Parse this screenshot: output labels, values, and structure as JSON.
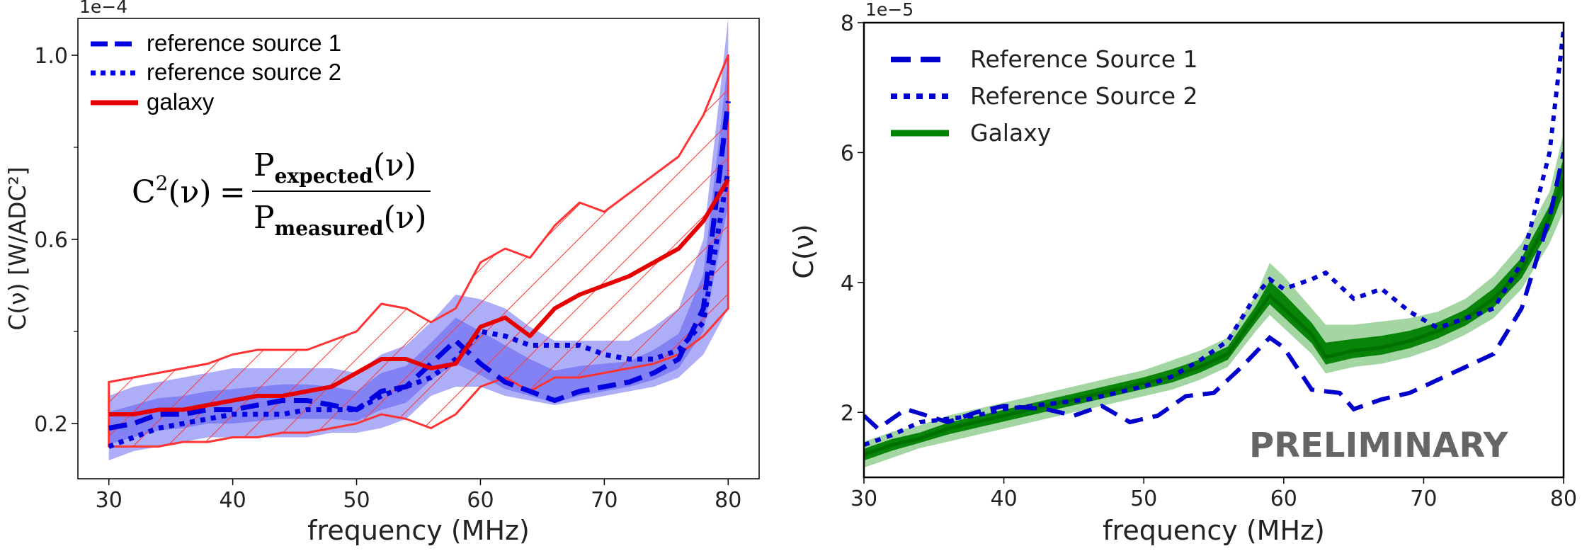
{
  "chart_data": [
    {
      "type": "line",
      "title": "",
      "xlabel": "frequency (MHz)",
      "ylabel": "C(ν) [W/ADC²]",
      "offset_text": "1e−4",
      "xlim": [
        27.5,
        82.5
      ],
      "ylim": [
        0.08,
        1.08
      ],
      "x_ticks": [
        30,
        40,
        50,
        60,
        70,
        80
      ],
      "x_tick_labels": [
        "30",
        "40",
        "50",
        "60",
        "70",
        "80"
      ],
      "y_ticks": [
        0.2,
        0.6,
        1.0
      ],
      "y_tick_labels": [
        "0.2",
        "0.6",
        "1.0"
      ],
      "y_minor_ticks": [
        0.4,
        0.8
      ],
      "legend_position": "top-left",
      "legend": [
        {
          "label": "reference source 1",
          "style": "dashed",
          "color": "#0000e0"
        },
        {
          "label": "reference source 2",
          "style": "dotted",
          "color": "#0000e0"
        },
        {
          "label": "galaxy",
          "style": "solid",
          "color": "#e60000"
        }
      ],
      "formula": {
        "lhs_base": "C",
        "lhs_sup": "2",
        "lhs_arg": "(ν)",
        "equals": "=",
        "num_base": "P",
        "num_sub": "expected",
        "num_arg": "(ν)",
        "den_base": "P",
        "den_sub": "measured",
        "den_arg": "(ν)"
      },
      "x": [
        30,
        32,
        34,
        36,
        38,
        40,
        42,
        44,
        46,
        48,
        50,
        52,
        54,
        56,
        58,
        60,
        62,
        64,
        66,
        68,
        70,
        72,
        74,
        76,
        78,
        80
      ],
      "series": [
        {
          "name": "reference source 1",
          "style": "dashed",
          "color": "#0000e0",
          "values": [
            0.19,
            0.2,
            0.22,
            0.22,
            0.23,
            0.23,
            0.24,
            0.25,
            0.25,
            0.24,
            0.23,
            0.27,
            0.28,
            0.33,
            0.38,
            0.33,
            0.29,
            0.27,
            0.25,
            0.27,
            0.28,
            0.29,
            0.31,
            0.34,
            0.45,
            0.9
          ],
          "band": {
            "lower": [
              0.12,
              0.14,
              0.15,
              0.16,
              0.17,
              0.17,
              0.17,
              0.17,
              0.17,
              0.18,
              0.18,
              0.19,
              0.21,
              0.26,
              0.28,
              0.28,
              0.26,
              0.25,
              0.24,
              0.25,
              0.26,
              0.27,
              0.28,
              0.3,
              0.35,
              0.45
            ],
            "upper": [
              0.26,
              0.28,
              0.29,
              0.3,
              0.31,
              0.32,
              0.32,
              0.32,
              0.32,
              0.32,
              0.31,
              0.35,
              0.37,
              0.42,
              0.48,
              0.47,
              0.45,
              0.41,
              0.38,
              0.38,
              0.38,
              0.38,
              0.41,
              0.45,
              0.6,
              1.08
            ],
            "color": "#3333ee"
          }
        },
        {
          "name": "reference source 2",
          "style": "dotted",
          "color": "#0000e0",
          "values": [
            0.15,
            0.17,
            0.19,
            0.2,
            0.21,
            0.22,
            0.22,
            0.22,
            0.23,
            0.23,
            0.23,
            0.26,
            0.28,
            0.3,
            0.34,
            0.4,
            0.39,
            0.37,
            0.37,
            0.37,
            0.35,
            0.34,
            0.34,
            0.36,
            0.42,
            0.75
          ]
        },
        {
          "name": "galaxy",
          "style": "solid",
          "color": "#e60000",
          "values": [
            0.22,
            0.22,
            0.23,
            0.23,
            0.24,
            0.25,
            0.26,
            0.26,
            0.27,
            0.28,
            0.31,
            0.34,
            0.34,
            0.32,
            0.33,
            0.41,
            0.43,
            0.39,
            0.45,
            0.48,
            0.5,
            0.52,
            0.55,
            0.58,
            0.64,
            0.73
          ],
          "band": {
            "lower": [
              0.15,
              0.15,
              0.15,
              0.16,
              0.16,
              0.17,
              0.17,
              0.18,
              0.18,
              0.19,
              0.2,
              0.22,
              0.21,
              0.19,
              0.22,
              0.28,
              0.3,
              0.27,
              0.3,
              0.3,
              0.31,
              0.32,
              0.33,
              0.35,
              0.39,
              0.45
            ],
            "upper": [
              0.29,
              0.3,
              0.31,
              0.32,
              0.33,
              0.35,
              0.36,
              0.36,
              0.36,
              0.38,
              0.4,
              0.46,
              0.45,
              0.42,
              0.45,
              0.55,
              0.58,
              0.56,
              0.63,
              0.68,
              0.66,
              0.7,
              0.74,
              0.78,
              0.87,
              1.0
            ],
            "color": "#ff3333",
            "hatch": true
          }
        }
      ]
    },
    {
      "type": "line",
      "title": "",
      "xlabel": "frequency (MHz)",
      "ylabel": "C(ν)",
      "offset_text": "1e−5",
      "xlim": [
        30,
        80
      ],
      "ylim": [
        1.0,
        8.0
      ],
      "x_ticks": [
        30,
        40,
        50,
        60,
        70,
        80
      ],
      "x_tick_labels": [
        "30",
        "40",
        "50",
        "60",
        "70",
        "80"
      ],
      "y_ticks": [
        2,
        4,
        6,
        8
      ],
      "y_tick_labels": [
        "2",
        "4",
        "6",
        "8"
      ],
      "legend_position": "top-left",
      "legend": [
        {
          "label": "Reference Source 1",
          "style": "dashed",
          "color": "#0000cc"
        },
        {
          "label": "Reference Source 2",
          "style": "dotted",
          "color": "#0000cc"
        },
        {
          "label": "Galaxy",
          "style": "solid",
          "color": "#008000"
        }
      ],
      "watermark": "PRELIMINARY",
      "series": [
        {
          "name": "Reference Source 1",
          "style": "dashed",
          "color": "#0000cc",
          "x": [
            30,
            31,
            33,
            36,
            38,
            40,
            43,
            45,
            47,
            49,
            51,
            53,
            55,
            57,
            59,
            60,
            62,
            64,
            65,
            67,
            69,
            71,
            73,
            75,
            77,
            79,
            80
          ],
          "y": [
            1.95,
            1.75,
            2.05,
            1.85,
            2.0,
            2.1,
            2.05,
            1.95,
            2.1,
            1.85,
            1.95,
            2.25,
            2.3,
            2.7,
            3.15,
            3.0,
            2.35,
            2.3,
            2.05,
            2.2,
            2.3,
            2.5,
            2.7,
            2.9,
            3.6,
            5.0,
            6.0
          ]
        },
        {
          "name": "Reference Source 2",
          "style": "dotted",
          "color": "#0000cc",
          "x": [
            30,
            32,
            34,
            36,
            38,
            40,
            42,
            44,
            46,
            48,
            50,
            52,
            54,
            56,
            58,
            59,
            60,
            62,
            63,
            65,
            67,
            69,
            71,
            73,
            75,
            77,
            79,
            80
          ],
          "y": [
            1.5,
            1.65,
            1.85,
            1.9,
            1.95,
            2.05,
            2.1,
            2.15,
            2.2,
            2.3,
            2.4,
            2.55,
            2.8,
            3.1,
            3.8,
            4.05,
            3.9,
            4.05,
            4.15,
            3.75,
            3.9,
            3.55,
            3.3,
            3.45,
            3.6,
            4.3,
            6.0,
            7.9
          ]
        },
        {
          "name": "Galaxy",
          "style": "solid",
          "color": "#008000",
          "x": [
            30,
            32,
            34,
            36,
            38,
            40,
            42,
            44,
            46,
            48,
            50,
            52,
            54,
            56,
            58,
            59,
            60,
            62,
            63,
            65,
            67,
            69,
            71,
            73,
            75,
            77,
            79,
            80
          ],
          "y": [
            1.35,
            1.5,
            1.6,
            1.75,
            1.85,
            1.95,
            2.05,
            2.15,
            2.25,
            2.35,
            2.45,
            2.55,
            2.7,
            2.9,
            3.5,
            3.8,
            3.6,
            3.2,
            2.85,
            2.95,
            3.0,
            3.1,
            3.25,
            3.45,
            3.75,
            4.2,
            5.0,
            5.6
          ],
          "band": {
            "lower": [
              1.15,
              1.3,
              1.45,
              1.55,
              1.65,
              1.75,
              1.85,
              1.95,
              2.05,
              2.15,
              2.25,
              2.35,
              2.5,
              2.7,
              3.25,
              3.5,
              3.3,
              2.9,
              2.6,
              2.7,
              2.75,
              2.85,
              3.0,
              3.2,
              3.45,
              3.9,
              4.6,
              5.1
            ],
            "upper": [
              1.55,
              1.7,
              1.8,
              1.95,
              2.05,
              2.15,
              2.25,
              2.35,
              2.45,
              2.55,
              2.65,
              2.8,
              2.95,
              3.15,
              3.8,
              4.3,
              4.1,
              3.6,
              3.35,
              3.35,
              3.4,
              3.45,
              3.55,
              3.75,
              4.1,
              4.6,
              5.4,
              6.3
            ],
            "color": "#66bb66"
          }
        }
      ]
    }
  ]
}
